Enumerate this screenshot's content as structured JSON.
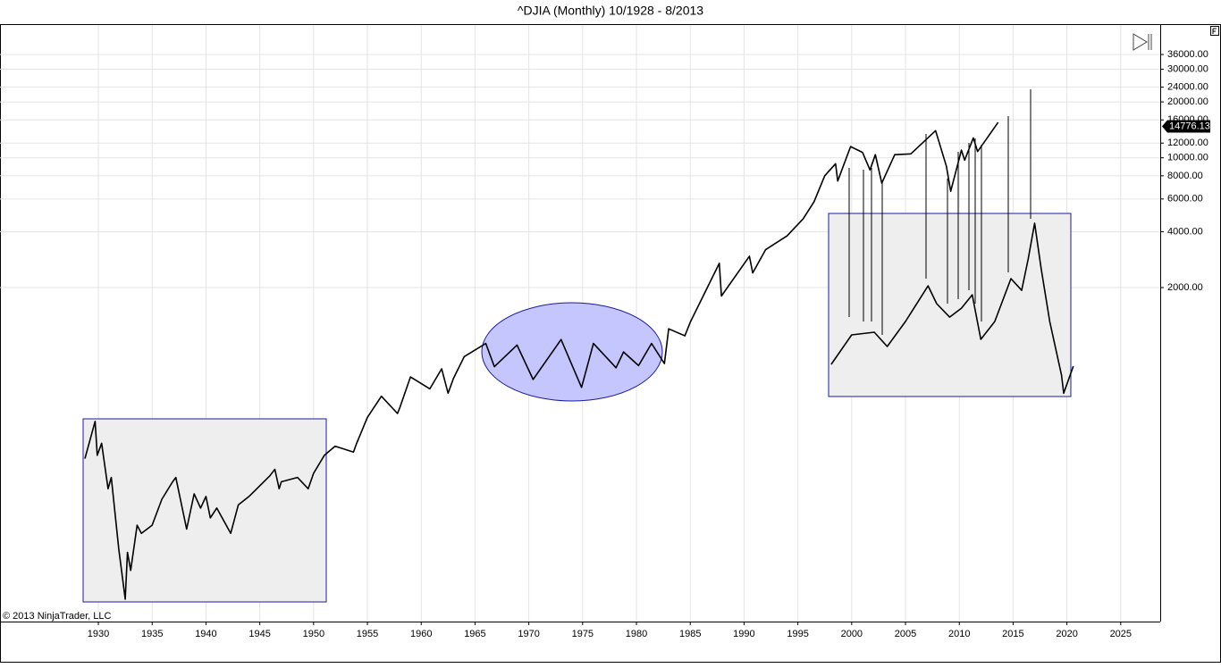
{
  "chart_data": {
    "type": "line",
    "title": "^DJIA (Monthly)  10/1928 - 8/2013",
    "copyright": "© 2013 NinjaTrader, LLC",
    "log_scale": true,
    "grid": true,
    "color": "#000000",
    "x": [
      1928.75,
      1929.7,
      1929.9,
      1930.3,
      1930.9,
      1931.2,
      1931.9,
      1932.5,
      1932.7,
      1933.0,
      1933.6,
      1934.0,
      1935.0,
      1935.9,
      1936.9,
      1937.2,
      1938.2,
      1938.9,
      1939.5,
      1940.0,
      1940.4,
      1941.0,
      1942.3,
      1943.0,
      1944.0,
      1945.9,
      1946.4,
      1946.8,
      1947.0,
      1948.5,
      1949.5,
      1950.0,
      1951.0,
      1952.0,
      1953.7,
      1954.0,
      1955.0,
      1956.3,
      1957.8,
      1958.0,
      1959.0,
      1960.8,
      1961.9,
      1962.5,
      1963.0,
      1964.0,
      1966.0,
      1966.8,
      1968.9,
      1970.4,
      1973.0,
      1974.9,
      1976.0,
      1978.1,
      1978.8,
      1980.2,
      1981.4,
      1982.6,
      1983.0,
      1984.5,
      1985.0,
      1987.7,
      1987.9,
      1990.5,
      1990.8,
      1992.0,
      1994.0,
      1995.5,
      1996.5,
      1997.5,
      1998.5,
      1998.7,
      1999.9,
      2001.0,
      2001.7,
      2002.2,
      2002.8,
      2004.0,
      2005.5,
      2007.8,
      2008.8,
      2009.2,
      2010.2,
      2010.5,
      2011.3,
      2011.7,
      2012.8,
      2013.6
    ],
    "values": [
      240,
      381,
      250,
      290,
      165,
      190,
      78,
      42,
      75,
      60,
      105,
      95,
      105,
      145,
      180,
      190,
      100,
      155,
      130,
      150,
      115,
      130,
      95,
      135,
      150,
      193,
      210,
      165,
      180,
      190,
      165,
      200,
      250,
      280,
      260,
      290,
      400,
      520,
      420,
      450,
      660,
      570,
      730,
      540,
      650,
      850,
      1000,
      750,
      980,
      640,
      1050,
      580,
      1000,
      740,
      900,
      760,
      1000,
      780,
      1200,
      1100,
      1300,
      2700,
      1800,
      2950,
      2400,
      3200,
      3800,
      4700,
      5800,
      8000,
      9300,
      7500,
      11500,
      10700,
      8600,
      10400,
      7300,
      10400,
      10500,
      14000,
      9000,
      6600,
      11000,
      9700,
      12800,
      10800,
      13300,
      15500
    ],
    "last_value": 14776.13,
    "overlay": {
      "color": "#000000",
      "x": [
        1998.1,
        2000.0,
        2002.1,
        2003.3,
        2005.0,
        2007.1,
        2007.9,
        2009.1,
        2010.2,
        2011.2,
        2012.0,
        2013.3,
        2014.8,
        2015.8,
        2016.4,
        2017.0,
        2017.6,
        2018.4,
        2019.5,
        2019.7,
        2020.6
      ],
      "values": [
        772,
        1112,
        1150,
        963,
        1313,
        2044,
        1640,
        1386,
        1549,
        1830,
        1053,
        1313,
        2234,
        1934,
        2850,
        4445,
        2550,
        1313,
        674,
        540,
        755
      ]
    },
    "xlim": [
      1920.86,
      2028.67
    ],
    "xticks": [
      1930,
      1935,
      1940,
      1945,
      1950,
      1955,
      1960,
      1965,
      1970,
      1975,
      1980,
      1985,
      1990,
      1995,
      2000,
      2005,
      2010,
      2015,
      2020,
      2025
    ],
    "ylim": [
      31.8,
      51900
    ],
    "yticks": [
      {
        "value": 2000,
        "label": "2000.00"
      },
      {
        "value": 4000,
        "label": "4000.00"
      },
      {
        "value": 6000,
        "label": "6000.00"
      },
      {
        "value": 8000,
        "label": "8000.00"
      },
      {
        "value": 10000,
        "label": "10000.00"
      },
      {
        "value": 12000,
        "label": "12000.00"
      },
      {
        "value": 16000,
        "label": "16000.00"
      },
      {
        "value": 20000,
        "label": "20000.00"
      },
      {
        "value": 24000,
        "label": "24000.00"
      },
      {
        "value": 30000,
        "label": "30000.00"
      },
      {
        "value": 36000,
        "label": "36000.00"
      }
    ]
  }
}
